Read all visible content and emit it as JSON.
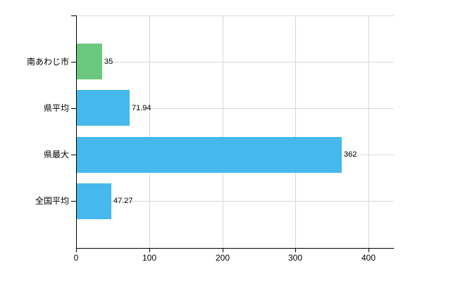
{
  "chart_data": {
    "type": "bar",
    "orientation": "horizontal",
    "title": "",
    "xlabel": "",
    "ylabel": "",
    "categories": [
      "南あわじ市",
      "県平均",
      "県最大",
      "全国平均"
    ],
    "values": [
      35,
      71.94,
      362,
      47.27
    ],
    "value_labels": [
      "35",
      "71.94",
      "362",
      "47.27"
    ],
    "bar_colors": [
      "#6dc87f",
      "#46b8ec",
      "#46b8ec",
      "#46b8ec"
    ],
    "x_ticks": [
      0,
      100,
      200,
      300,
      400
    ],
    "xlim": [
      0,
      400
    ],
    "grid": true,
    "legend": "none",
    "colors": {
      "background": "#ffffff",
      "grid": "#d8d8d8",
      "axis": "#000000",
      "text": "#000000"
    }
  }
}
